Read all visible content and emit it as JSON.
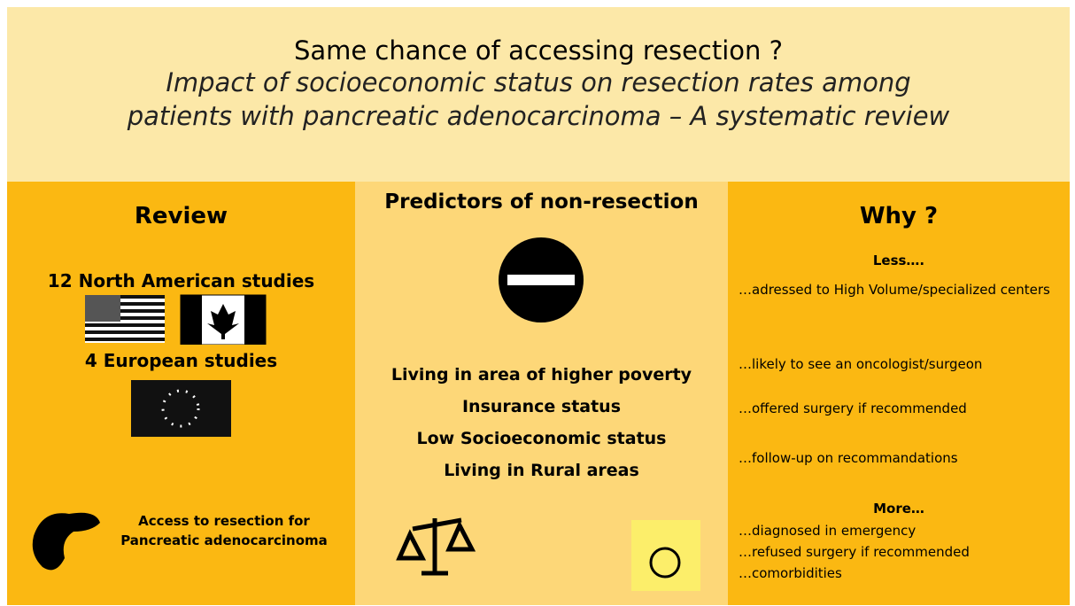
{
  "header": {
    "title": "Same chance of accessing resection ?",
    "subtitle_line1": "Impact of socioeconomic status on resection rates among",
    "subtitle_line2": "patients with pancreatic adenocarcinoma – A systematic review"
  },
  "review": {
    "title": "Review",
    "north_american": "12 North American studies",
    "european": "4 European studies",
    "access_line1": "Access to resection for",
    "access_line2": "Pancreatic adenocarcinoma"
  },
  "predictors": {
    "title": "Predictors of non-resection",
    "items": [
      "Living in area of higher poverty",
      "Insurance status",
      "Low Socioeconomic status",
      "Living in Rural areas"
    ]
  },
  "why": {
    "title": "Why ?",
    "less": "Less….",
    "less_items": [
      "…adressed to High Volume/specialized centers",
      "…likely to see an oncologist/surgeon",
      "…offered surgery if recommended",
      "…follow-up on recommandations"
    ],
    "more": "More…",
    "more_items": [
      "…diagnosed in emergency",
      "…refused surgery if recommended",
      "…comorbidities"
    ]
  }
}
